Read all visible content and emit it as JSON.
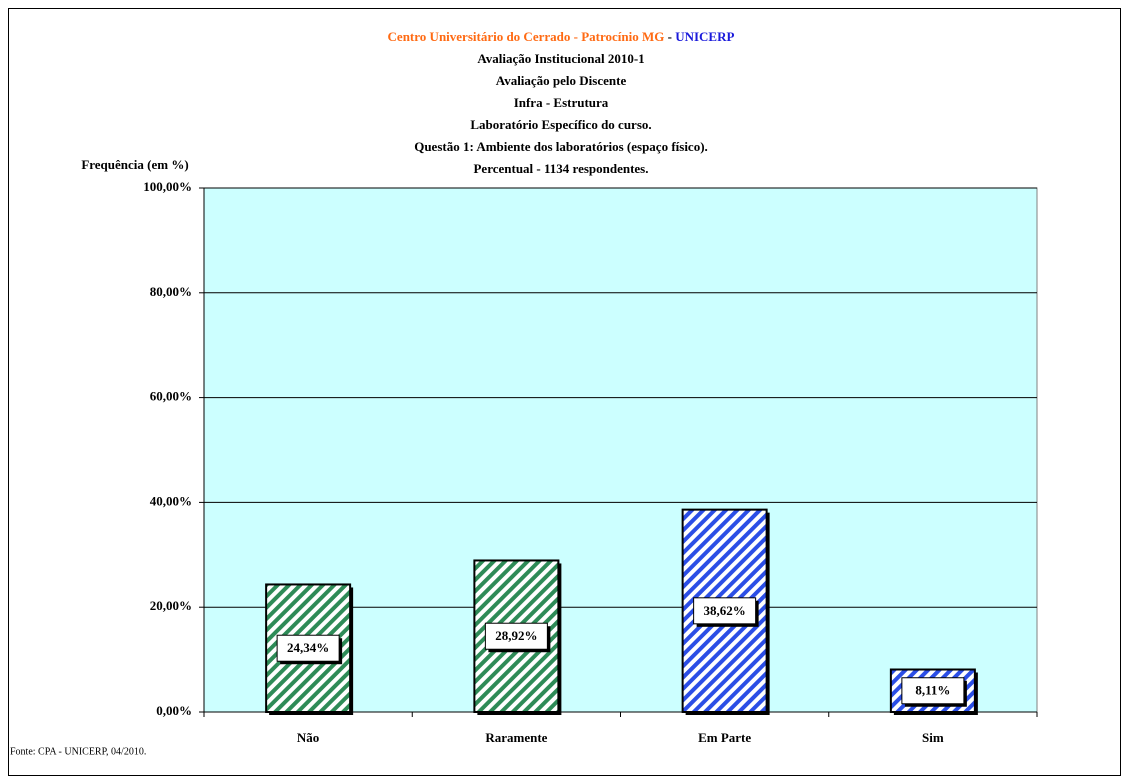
{
  "chart_data": {
    "type": "bar",
    "title": "Centro Universitário do Cerrado - Patrocínio MG",
    "title_separator": "-",
    "title_brand": "UNICERP",
    "subtitle": [
      "Avaliação Institucional 2010-1",
      "Avaliação pelo Discente",
      "Infra - Estrutura",
      "Laboratório Específico do curso.",
      "Questão 1: Ambiente dos laboratórios (espaço físico).",
      "Percentual - 1134 respondentes."
    ],
    "y_label": "Frequência (em %)",
    "source": "Fonte: CPA - UNICERP, 04/2010.",
    "categories": [
      "Não",
      "Raramente",
      "Em Parte",
      "Sim"
    ],
    "values": [
      24.34,
      28.92,
      38.62,
      8.11
    ],
    "value_labels": [
      "24,34%",
      "28,92%",
      "38,62%",
      "8,11%"
    ],
    "colors": [
      "#2e8b57",
      "#2e8b57",
      "#2b4ee6",
      "#2b4ee6"
    ],
    "ylim": [
      0,
      100
    ],
    "yticks": [
      {
        "value": 0,
        "label": "0,00%"
      },
      {
        "value": 20,
        "label": "20,00%"
      },
      {
        "value": 40,
        "label": "40,00%"
      },
      {
        "value": 60,
        "label": "60,00%"
      },
      {
        "value": 80,
        "label": "80,00%"
      },
      {
        "value": 100,
        "label": "100,00%"
      }
    ],
    "grid": true,
    "plot_background": "#ccffff"
  }
}
